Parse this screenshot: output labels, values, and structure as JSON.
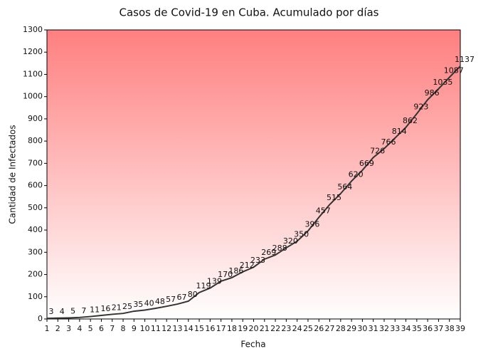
{
  "chart_data": {
    "type": "line",
    "title": "Casos de Covid-19 en Cuba. Acumulado por días",
    "xlabel": "Fecha",
    "ylabel": "Cantidad de Infectados",
    "x": [
      1,
      2,
      3,
      4,
      5,
      6,
      7,
      8,
      9,
      10,
      11,
      12,
      13,
      14,
      15,
      16,
      17,
      18,
      19,
      20,
      21,
      22,
      23,
      24,
      25,
      26,
      27,
      28,
      29,
      30,
      31,
      32,
      33,
      34,
      35,
      36,
      37,
      38,
      39
    ],
    "values": [
      3,
      4,
      5,
      7,
      11,
      16,
      21,
      25,
      35,
      40,
      48,
      57,
      67,
      80,
      119,
      139,
      170,
      186,
      212,
      233,
      269,
      288,
      320,
      350,
      396,
      457,
      515,
      564,
      620,
      669,
      726,
      766,
      814,
      862,
      923,
      986,
      1035,
      1087,
      1137
    ],
    "color": "#333333",
    "xlim": [
      1,
      39
    ],
    "xticks": [
      1,
      2,
      3,
      4,
      5,
      6,
      7,
      8,
      9,
      10,
      11,
      12,
      13,
      14,
      15,
      16,
      17,
      18,
      19,
      20,
      21,
      22,
      23,
      24,
      25,
      26,
      27,
      28,
      29,
      30,
      31,
      32,
      33,
      34,
      35,
      36,
      37,
      38,
      39
    ],
    "ylim": [
      0,
      1300
    ],
    "yticks": [
      0,
      100,
      200,
      300,
      400,
      500,
      600,
      700,
      800,
      900,
      1000,
      1100,
      1200,
      1300
    ]
  }
}
